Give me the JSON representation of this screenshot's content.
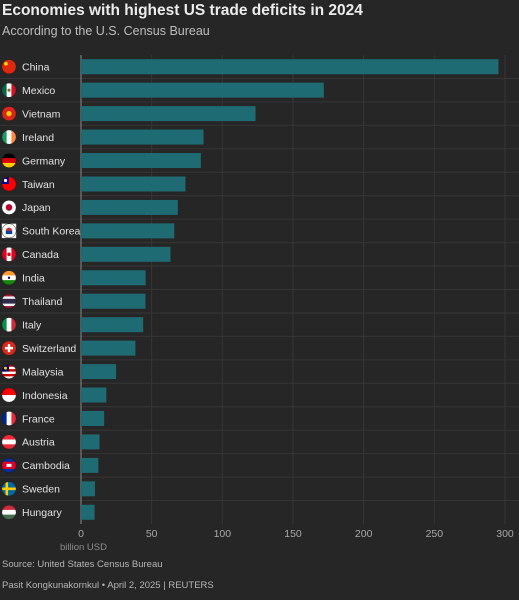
{
  "header": {
    "title": "Economies with highest US trade deficits in 2024",
    "subtitle": "According to the U.S. Census Bureau"
  },
  "footer": {
    "source": "Source: United States Census Bureau",
    "credit": "Pasit Kongkunakornkul • April 2, 2025 | REUTERS"
  },
  "chart_data": {
    "type": "bar",
    "orientation": "horizontal",
    "title": "Economies with highest US trade deficits in 2024",
    "subtitle": "According to the U.S. Census Bureau",
    "xlabel": "billion USD",
    "ylabel": "",
    "xlim": [
      0,
      300
    ],
    "xticks": [
      0,
      50,
      100,
      150,
      200,
      250,
      300
    ],
    "grid": true,
    "bar_color": "#1f6b74",
    "categories": [
      "China",
      "Mexico",
      "Vietnam",
      "Ireland",
      "Germany",
      "Taiwan",
      "Japan",
      "South Korea",
      "Canada",
      "India",
      "Thailand",
      "Italy",
      "Switzerland",
      "Malaysia",
      "Indonesia",
      "France",
      "Austria",
      "Cambodia",
      "Sweden",
      "Hungary"
    ],
    "values": [
      295.4,
      171.8,
      123.5,
      86.7,
      84.8,
      73.9,
      68.5,
      66.0,
      63.3,
      45.7,
      45.6,
      44.0,
      38.5,
      24.8,
      17.9,
      16.4,
      13.1,
      12.3,
      9.9,
      9.6
    ],
    "flags": [
      "china-flag-icon",
      "mexico-flag-icon",
      "vietnam-flag-icon",
      "ireland-flag-icon",
      "germany-flag-icon",
      "taiwan-flag-icon",
      "japan-flag-icon",
      "south-korea-flag-icon",
      "canada-flag-icon",
      "india-flag-icon",
      "thailand-flag-icon",
      "italy-flag-icon",
      "switzerland-flag-icon",
      "malaysia-flag-icon",
      "indonesia-flag-icon",
      "france-flag-icon",
      "austria-flag-icon",
      "cambodia-flag-icon",
      "sweden-flag-icon",
      "hungary-flag-icon"
    ]
  }
}
